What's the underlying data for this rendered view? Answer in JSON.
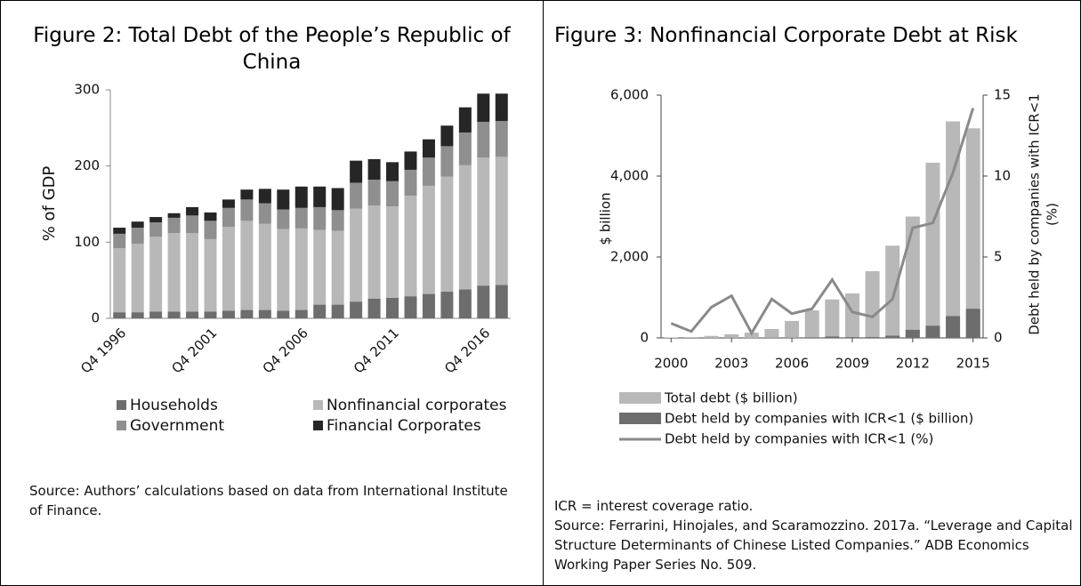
{
  "chart_data": [
    {
      "type": "bar",
      "title": "Figure 2: Total Debt of the People’s Republic of China",
      "ylabel": "% of GDP",
      "categories": [
        "Q4 1996",
        null,
        null,
        null,
        null,
        "Q4 2001",
        null,
        null,
        null,
        null,
        "Q4 2006",
        null,
        null,
        null,
        null,
        "Q4 2011",
        null,
        null,
        null,
        null,
        "Q4 2016",
        null
      ],
      "series": [
        {
          "name": "Households",
          "color": "#6d6d6d",
          "values": [
            8,
            8,
            9,
            9,
            9,
            9,
            10,
            11,
            11,
            10,
            11,
            18,
            18,
            22,
            26,
            27,
            29,
            32,
            35,
            38,
            43,
            44
          ]
        },
        {
          "name": "Nonfinancial corporates",
          "color": "#b8b8b8",
          "values": [
            84,
            90,
            98,
            103,
            103,
            95,
            110,
            117,
            113,
            107,
            107,
            98,
            97,
            122,
            122,
            120,
            132,
            142,
            151,
            163,
            168,
            168
          ]
        },
        {
          "name": "Government",
          "color": "#8f8f8f",
          "values": [
            19,
            21,
            19,
            20,
            23,
            24,
            25,
            28,
            27,
            26,
            27,
            30,
            27,
            34,
            34,
            33,
            34,
            37,
            40,
            43,
            47,
            47
          ]
        },
        {
          "name": "Financial Corporates",
          "color": "#262626",
          "values": [
            8,
            8,
            7,
            6,
            11,
            11,
            11,
            13,
            19,
            26,
            28,
            27,
            29,
            29,
            27,
            25,
            24,
            24,
            27,
            33,
            37,
            36
          ]
        }
      ],
      "stacked": true,
      "ylim": [
        0,
        300
      ],
      "yticks": [
        0,
        100,
        200,
        300
      ],
      "notes": [
        "Source: Authors’ calculations based on data from International Institute of Finance."
      ]
    },
    {
      "type": "bar_line",
      "title": "Figure 3: Nonfinancial Corporate Debt at Risk",
      "ylabel": "$ billion",
      "y2label": [
        "Debt held by companies with ICR<1",
        "(%)"
      ],
      "x": [
        2000,
        2001,
        2002,
        2003,
        2004,
        2005,
        2006,
        2007,
        2008,
        2009,
        2010,
        2011,
        2012,
        2013,
        2014,
        2015
      ],
      "series": [
        {
          "name": "Total debt ($ billion)",
          "color": "#b8b8b8",
          "values": [
            10,
            20,
            50,
            90,
            130,
            220,
            420,
            680,
            950,
            1100,
            1650,
            2280,
            3000,
            4330,
            5350,
            5180
          ]
        },
        {
          "name": "Debt held by companies with ICR<1 ($ billion)",
          "color": "#6d6d6d",
          "values": [
            0,
            0,
            1,
            2,
            0,
            5,
            6,
            12,
            34,
            18,
            21,
            55,
            200,
            300,
            540,
            720
          ]
        },
        {
          "name": "Debt held by companies with ICR<1 (%)",
          "color": "#8a8a8a",
          "axis": "y2",
          "values": [
            0.9,
            0.4,
            1.9,
            2.6,
            0.3,
            2.4,
            1.5,
            1.8,
            3.6,
            1.6,
            1.3,
            2.4,
            6.8,
            7.1,
            10.2,
            14.2
          ]
        }
      ],
      "xlim": [
        1999.5,
        2015.5
      ],
      "xticks": [
        2000,
        2003,
        2006,
        2009,
        2012,
        2015
      ],
      "ylim": [
        0,
        6000
      ],
      "yticks": [
        0,
        {
          "value": 2000,
          "label": "2,000"
        },
        {
          "value": 4000,
          "label": "4,000"
        },
        {
          "value": 6000,
          "label": "6,000"
        }
      ],
      "y2lim": [
        0,
        15
      ],
      "y2ticks": [
        0,
        5,
        10,
        15
      ],
      "notes": [
        "ICR = interest coverage ratio.",
        "Source: Ferrarini, Hinojales, and Scaramozzino. 2017a. “Leverage and Capital Structure Determinants of Chinese Listed Companies.” ADB Economics Working Paper Series No. 509."
      ]
    }
  ]
}
